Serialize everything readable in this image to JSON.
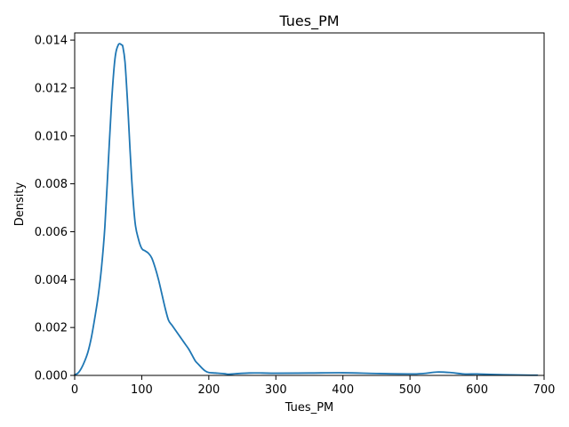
{
  "chart_data": {
    "type": "line",
    "title": "Tues_PM",
    "xlabel": "Tues_PM",
    "ylabel": "Density",
    "xlim": [
      0,
      700
    ],
    "ylim": [
      0,
      0.0143
    ],
    "x_ticks": [
      0,
      100,
      200,
      300,
      400,
      500,
      600,
      700
    ],
    "y_ticks": [
      0.0,
      0.002,
      0.004,
      0.006,
      0.008,
      0.01,
      0.012,
      0.014
    ],
    "x_tick_labels": [
      "0",
      "100",
      "200",
      "300",
      "400",
      "500",
      "600",
      "700"
    ],
    "y_tick_labels": [
      "0.000",
      "0.002",
      "0.004",
      "0.006",
      "0.008",
      "0.010",
      "0.012",
      "0.014"
    ],
    "grid": false,
    "series": [
      {
        "name": "Tues_PM",
        "color": "#1f77b4",
        "x": [
          0,
          5,
          10,
          15,
          20,
          25,
          30,
          35,
          40,
          45,
          50,
          55,
          60,
          65,
          70,
          72,
          75,
          78,
          80,
          85,
          90,
          95,
          100,
          105,
          110,
          115,
          120,
          125,
          130,
          135,
          140,
          145,
          150,
          155,
          160,
          165,
          170,
          175,
          180,
          185,
          190,
          195,
          200,
          210,
          220,
          230,
          240,
          260,
          280,
          300,
          350,
          400,
          450,
          500,
          520,
          540,
          560,
          580,
          600,
          620,
          650,
          680,
          690
        ],
        "y": [
          2e-05,
          0.0001,
          0.0003,
          0.0006,
          0.001,
          0.0016,
          0.0024,
          0.0033,
          0.0045,
          0.0062,
          0.0088,
          0.0114,
          0.0132,
          0.0138,
          0.0138,
          0.0137,
          0.0131,
          0.0118,
          0.0108,
          0.0082,
          0.0064,
          0.0057,
          0.0053,
          0.0052,
          0.0051,
          0.0049,
          0.0045,
          0.004,
          0.0034,
          0.0028,
          0.0023,
          0.0021,
          0.0019,
          0.0017,
          0.0015,
          0.0013,
          0.0011,
          0.00085,
          0.0006,
          0.00045,
          0.0003,
          0.00018,
          0.00012,
          0.0001,
          8e-05,
          5e-05,
          7e-05,
          0.0001,
          0.0001,
          9e-05,
          0.0001,
          0.00011,
          8e-05,
          6e-05,
          8e-05,
          0.00014,
          0.00012,
          6e-05,
          6e-05,
          4e-05,
          2e-05,
          1e-05,
          1e-05
        ]
      }
    ]
  }
}
